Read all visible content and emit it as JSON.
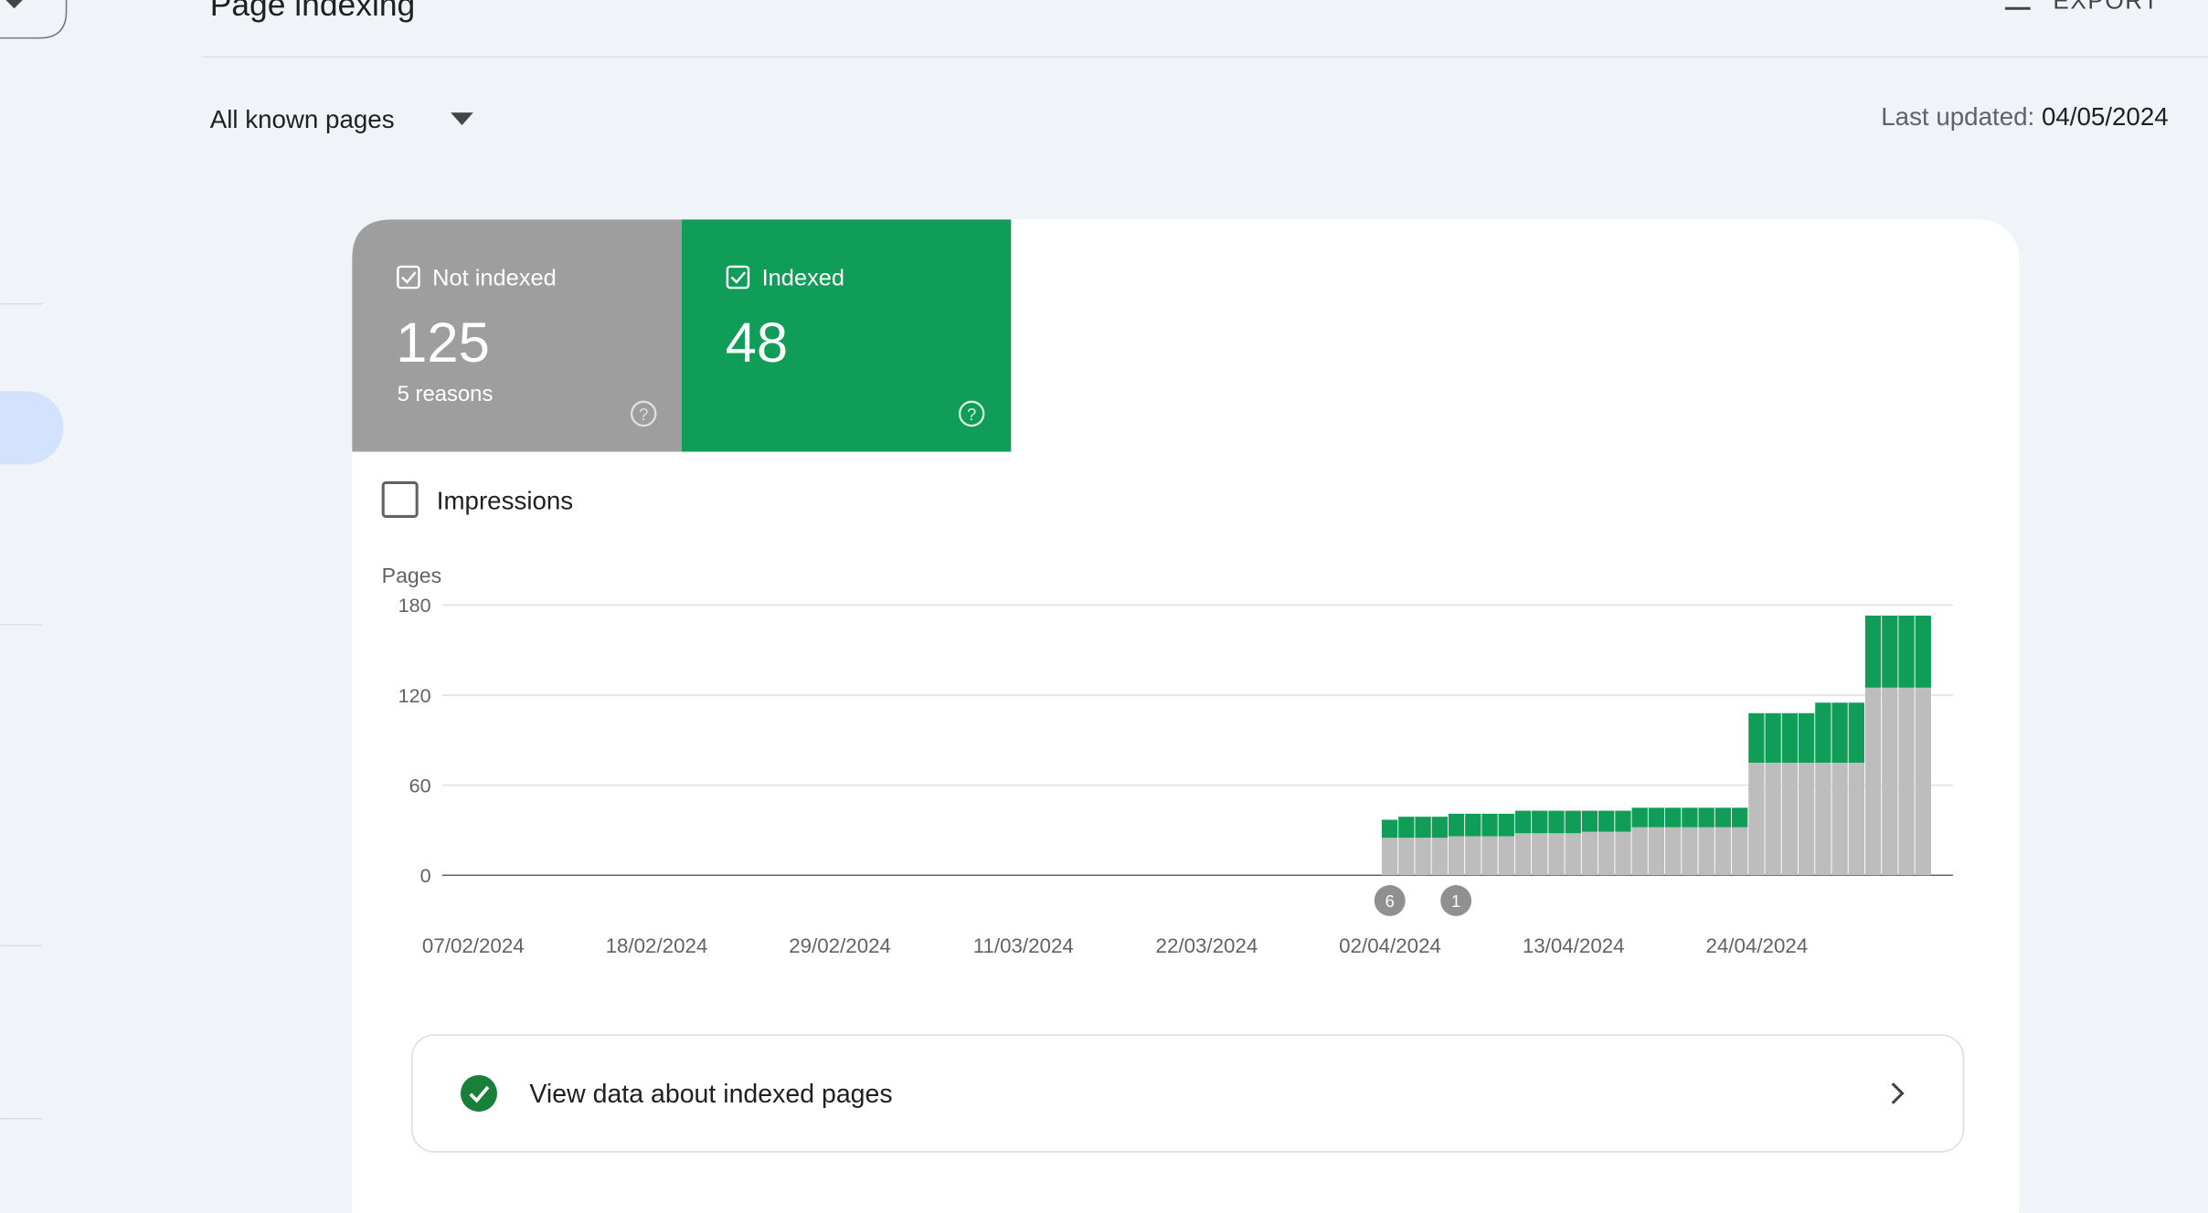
{
  "header": {
    "title": "Page indexing",
    "export": "EXPORT"
  },
  "filter": {
    "scope": "All known pages",
    "updated_label": "Last updated:",
    "updated_date": "04/05/2024"
  },
  "tiles": [
    {
      "label": "Not indexed",
      "value": "125",
      "sub": "5 reasons"
    },
    {
      "label": "Indexed",
      "value": "48"
    }
  ],
  "impressions": "Impressions",
  "annotations": [
    "6",
    "1"
  ],
  "footer": {
    "link": "View data about indexed pages"
  },
  "chart_data": {
    "type": "bar",
    "stacked": true,
    "y_label": "Pages",
    "categories": [
      "07/02/2024",
      null,
      null,
      null,
      null,
      null,
      null,
      null,
      null,
      null,
      null,
      "18/02/2024",
      null,
      null,
      null,
      null,
      null,
      null,
      null,
      null,
      null,
      null,
      "29/02/2024",
      null,
      null,
      null,
      null,
      null,
      null,
      null,
      null,
      null,
      null,
      "11/03/2024",
      null,
      null,
      null,
      null,
      null,
      null,
      null,
      null,
      null,
      null,
      "22/03/2024",
      null,
      null,
      null,
      null,
      null,
      null,
      null,
      null,
      null,
      null,
      "02/04/2024",
      null,
      null,
      null,
      null,
      null,
      null,
      null,
      null,
      null,
      null,
      "13/04/2024",
      null,
      null,
      null,
      null,
      null,
      null,
      null,
      null,
      null,
      null,
      "24/04/2024",
      null,
      null,
      null,
      null,
      null,
      null,
      null,
      null,
      null,
      null
    ],
    "series": [
      {
        "name": "Not indexed",
        "color": "#bdbdbd",
        "values": [
          null,
          null,
          null,
          null,
          null,
          null,
          null,
          null,
          null,
          null,
          null,
          null,
          null,
          null,
          null,
          null,
          null,
          null,
          null,
          null,
          null,
          null,
          null,
          null,
          null,
          null,
          null,
          null,
          null,
          null,
          null,
          null,
          null,
          null,
          null,
          null,
          null,
          null,
          null,
          null,
          null,
          null,
          null,
          null,
          null,
          null,
          null,
          null,
          null,
          null,
          null,
          null,
          null,
          null,
          null,
          25,
          25,
          25,
          25,
          26,
          26,
          26,
          26,
          28,
          28,
          28,
          28,
          29,
          29,
          29,
          32,
          32,
          32,
          32,
          32,
          32,
          32,
          75,
          75,
          75,
          75,
          75,
          75,
          75,
          125,
          125,
          125,
          125
        ]
      },
      {
        "name": "Indexed",
        "color": "#0f9d58",
        "values": [
          null,
          null,
          null,
          null,
          null,
          null,
          null,
          null,
          null,
          null,
          null,
          null,
          null,
          null,
          null,
          null,
          null,
          null,
          null,
          null,
          null,
          null,
          null,
          null,
          null,
          null,
          null,
          null,
          null,
          null,
          null,
          null,
          null,
          null,
          null,
          null,
          null,
          null,
          null,
          null,
          null,
          null,
          null,
          null,
          null,
          null,
          null,
          null,
          null,
          null,
          null,
          null,
          null,
          null,
          null,
          12,
          14,
          14,
          14,
          15,
          15,
          15,
          15,
          15,
          15,
          15,
          15,
          14,
          14,
          14,
          13,
          13,
          13,
          13,
          13,
          13,
          13,
          33,
          33,
          33,
          33,
          40,
          40,
          40,
          48,
          48,
          48,
          48
        ]
      }
    ],
    "ylim": [
      0,
      180
    ],
    "yticks": [
      0,
      60,
      120,
      180
    ],
    "grid": true
  }
}
